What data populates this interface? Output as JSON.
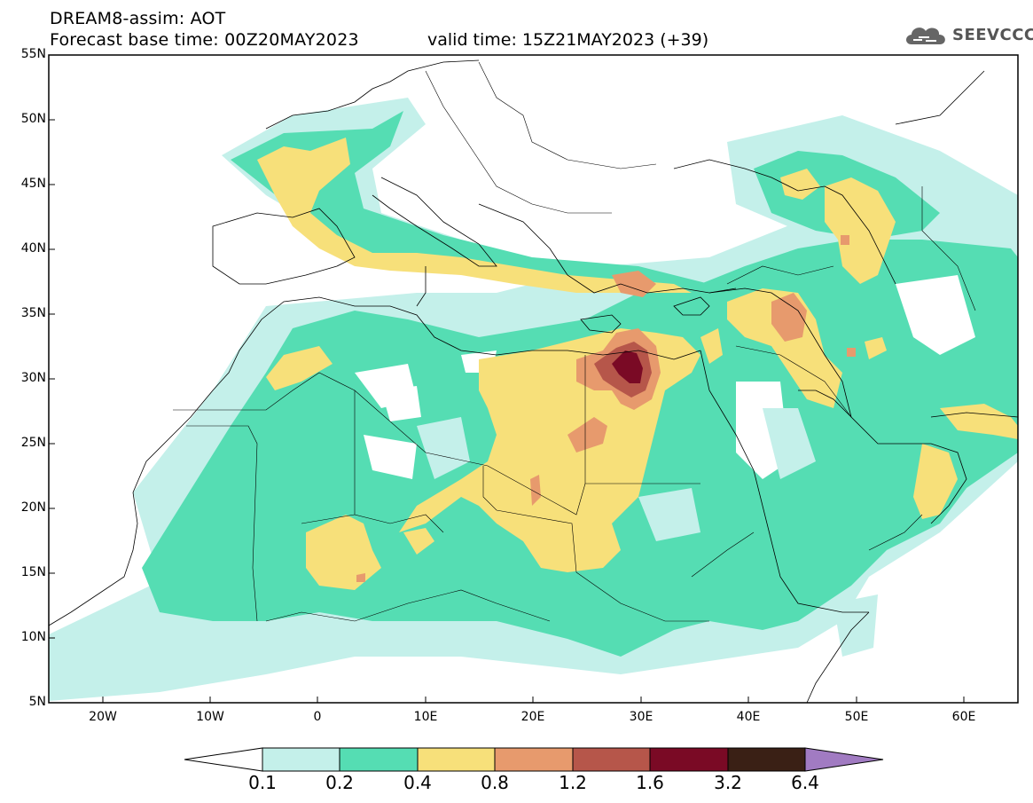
{
  "header": {
    "title": "DREAM8-assim: AOT",
    "base_time": "Forecast base time: 00Z20MAY2023",
    "valid_time": "valid time: 15Z21MAY2023 (+39)"
  },
  "logo": {
    "text": "SEEVCCC",
    "icon": "cloud-icon"
  },
  "map": {
    "variable": "AOT",
    "lon_range": [
      -25,
      65
    ],
    "lat_range": [
      5,
      55
    ],
    "lat_ticks": [
      "55N",
      "50N",
      "45N",
      "40N",
      "35N",
      "30N",
      "25N",
      "20N",
      "15N",
      "10N",
      "5N"
    ],
    "lon_ticks": [
      "20W",
      "10W",
      "0",
      "10E",
      "20E",
      "30E",
      "40E",
      "50E",
      "60E"
    ]
  },
  "colorbar": {
    "levels": [
      "0.1",
      "0.2",
      "0.4",
      "0.8",
      "1.2",
      "1.6",
      "3.2",
      "6.4"
    ],
    "colors": [
      "#c4f0ea",
      "#55ddb3",
      "#f7e07a",
      "#e79a6d",
      "#b6564a",
      "#7a0a25",
      "#3a2015",
      "#a17bc2"
    ],
    "under_color": "#ffffff",
    "over_color": "#a17bc2"
  }
}
